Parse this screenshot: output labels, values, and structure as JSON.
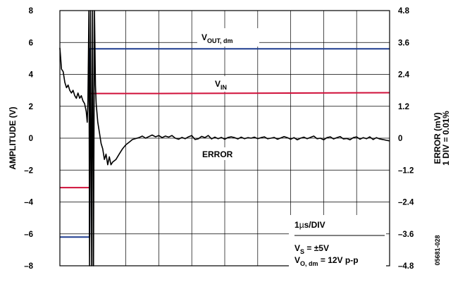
{
  "chart_data": {
    "type": "line",
    "title": "",
    "figure_id": "05681-028",
    "x_axis": {
      "label": "",
      "divisions": 10,
      "range": [
        0,
        10
      ],
      "unit_note": "1µs/DIV"
    },
    "y_left": {
      "label": "AMPLITUDE (V)",
      "ylim": [
        -8,
        8
      ],
      "ticks": [
        "8",
        "6",
        "4",
        "2",
        "0",
        "–2",
        "–4",
        "–6",
        "–8"
      ]
    },
    "y_right": {
      "label_line1": "ERROR (mV)",
      "label_line2": "1 DIV = 0.01%",
      "ylim": [
        -4.8,
        4.8
      ],
      "ticks": [
        "4.8",
        "3.6",
        "2.4",
        "1.2",
        "0",
        "–1.2",
        "–2.4",
        "–3.6",
        "–4.8"
      ]
    },
    "grid": true,
    "annotations": {
      "vout_main": "V",
      "vout_sub": "OUT, dm",
      "vin_main": "V",
      "vin_sub": "IN",
      "error": "ERROR",
      "time_div_prefix": "1",
      "time_div_mu": "µ",
      "time_div_suffix": "s/DIV",
      "vs_main": "V",
      "vs_sub": "S",
      "vs_value": " = ±5V",
      "vo_main": "V",
      "vo_sub": "O, dm",
      "vo_value": " = 12V p-p"
    },
    "series": [
      {
        "name": "VOUT, dm",
        "color": "#1f3d8f",
        "points": [
          [
            0,
            -6.2
          ],
          [
            0.9,
            -6.2
          ],
          [
            0.9,
            5.6
          ],
          [
            1.2,
            5.6
          ],
          [
            10,
            5.6
          ]
        ]
      },
      {
        "name": "VIN",
        "color": "#d0103a",
        "points": [
          [
            0,
            -3.1
          ],
          [
            0.9,
            -3.1
          ],
          [
            0.9,
            2.8
          ],
          [
            1.2,
            2.8
          ],
          [
            3,
            2.8
          ],
          [
            10,
            2.85
          ]
        ]
      },
      {
        "name": "ERROR",
        "color": "#000000",
        "axis": "right",
        "points": [
          [
            0,
            3.4
          ],
          [
            0.05,
            2.6
          ],
          [
            0.1,
            2.5
          ],
          [
            0.15,
            2.1
          ],
          [
            0.2,
            1.9
          ],
          [
            0.25,
            2.0
          ],
          [
            0.3,
            1.8
          ],
          [
            0.35,
            1.7
          ],
          [
            0.4,
            1.8
          ],
          [
            0.45,
            1.6
          ],
          [
            0.5,
            1.5
          ],
          [
            0.55,
            1.7
          ],
          [
            0.6,
            1.5
          ],
          [
            0.65,
            1.6
          ],
          [
            0.7,
            1.4
          ],
          [
            0.75,
            1.3
          ],
          [
            0.8,
            1.0
          ],
          [
            0.83,
            0.6
          ],
          [
            0.85,
            1.4
          ],
          [
            0.88,
            5.2
          ],
          [
            0.9,
            -5.2
          ],
          [
            0.93,
            5.2
          ],
          [
            0.96,
            -4.8
          ],
          [
            0.99,
            5.2
          ],
          [
            1.02,
            -4.8
          ],
          [
            1.05,
            5.2
          ],
          [
            1.08,
            2.0
          ],
          [
            1.1,
            1.3
          ],
          [
            1.15,
            0.6
          ],
          [
            1.2,
            0.2
          ],
          [
            1.25,
            -0.2
          ],
          [
            1.3,
            -0.4
          ],
          [
            1.35,
            -0.8
          ],
          [
            1.4,
            -0.6
          ],
          [
            1.45,
            -1.0
          ],
          [
            1.5,
            -0.7
          ],
          [
            1.55,
            -1.0
          ],
          [
            1.6,
            -0.9
          ],
          [
            1.7,
            -0.8
          ],
          [
            1.8,
            -0.6
          ],
          [
            1.9,
            -0.4
          ],
          [
            2.0,
            -0.25
          ],
          [
            2.1,
            -0.15
          ],
          [
            2.2,
            -0.05
          ],
          [
            2.4,
            0.02
          ],
          [
            2.5,
            0.08
          ],
          [
            2.6,
            0.0
          ],
          [
            2.7,
            0.06
          ],
          [
            2.8,
            0.12
          ],
          [
            2.9,
            0.05
          ],
          [
            3.0,
            0.1
          ],
          [
            3.1,
            0.02
          ],
          [
            3.2,
            0.08
          ],
          [
            3.3,
            0.04
          ],
          [
            3.4,
            0.1
          ],
          [
            3.5,
            0.0
          ],
          [
            3.6,
            -0.04
          ],
          [
            3.7,
            0.03
          ],
          [
            3.8,
            -0.02
          ],
          [
            3.9,
            0.05
          ],
          [
            4.0,
            0.1
          ],
          [
            4.1,
            -0.05
          ],
          [
            4.2,
            -0.02
          ],
          [
            4.3,
            0.07
          ],
          [
            4.4,
            0.02
          ],
          [
            4.5,
            0.1
          ],
          [
            4.6,
            -0.03
          ],
          [
            4.7,
            0.04
          ],
          [
            4.8,
            -0.02
          ],
          [
            4.9,
            0.03
          ],
          [
            5.0,
            -0.04
          ],
          [
            5.1,
            0.03
          ],
          [
            5.2,
            0.05
          ],
          [
            5.3,
            0.02
          ],
          [
            5.4,
            -0.03
          ],
          [
            5.5,
            0.04
          ],
          [
            5.6,
            -0.02
          ],
          [
            5.7,
            0.02
          ],
          [
            5.8,
            0.0
          ],
          [
            5.9,
            0.04
          ],
          [
            6.0,
            -0.02
          ],
          [
            6.1,
            0.02
          ],
          [
            6.2,
            0.05
          ],
          [
            6.3,
            -0.02
          ],
          [
            6.4,
            0.0
          ],
          [
            6.5,
            0.03
          ],
          [
            6.6,
            -0.04
          ],
          [
            6.7,
            0.01
          ],
          [
            6.8,
            0.06
          ],
          [
            6.9,
            0.02
          ],
          [
            7.0,
            -0.04
          ],
          [
            7.1,
            0.02
          ],
          [
            7.2,
            -0.06
          ],
          [
            7.3,
            0.0
          ],
          [
            7.4,
            0.04
          ],
          [
            7.5,
            -0.02
          ],
          [
            7.6,
            0.03
          ],
          [
            7.7,
            0.08
          ],
          [
            7.8,
            -0.02
          ],
          [
            7.9,
            0.0
          ],
          [
            8.0,
            -0.06
          ],
          [
            8.1,
            0.02
          ],
          [
            8.2,
            0.05
          ],
          [
            8.3,
            -0.03
          ],
          [
            8.4,
            0.02
          ],
          [
            8.5,
            0.06
          ],
          [
            8.6,
            -0.03
          ],
          [
            8.7,
            -0.01
          ],
          [
            8.8,
            -0.06
          ],
          [
            8.9,
            0.02
          ],
          [
            9.0,
            0.05
          ],
          [
            9.1,
            -0.04
          ],
          [
            9.2,
            0.02
          ],
          [
            9.3,
            -0.02
          ],
          [
            9.4,
            0.05
          ],
          [
            9.5,
            -0.05
          ],
          [
            9.6,
            0.02
          ],
          [
            9.7,
            -0.03
          ],
          [
            9.8,
            -0.05
          ],
          [
            9.9,
            -0.08
          ],
          [
            10,
            -0.1
          ]
        ]
      }
    ]
  }
}
